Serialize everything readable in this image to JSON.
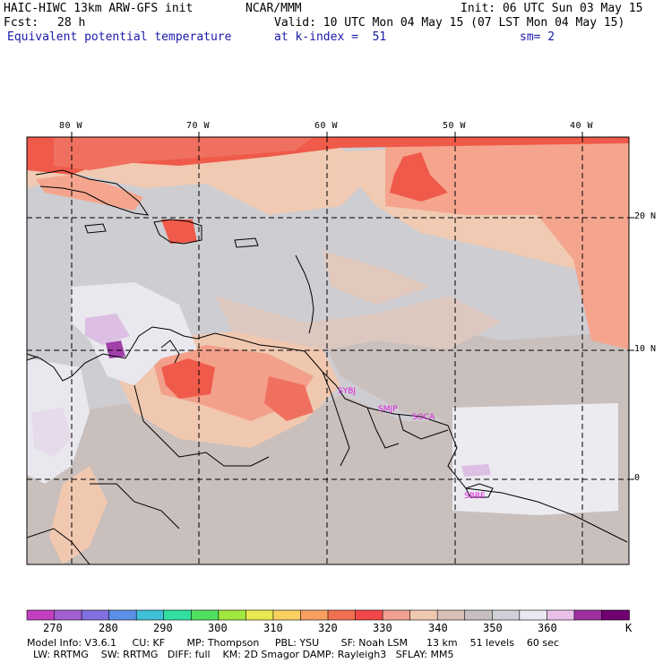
{
  "header": {
    "model": "HAIC-HIWC 13km ARW-GFS init",
    "center": "NCAR/MMM",
    "init": "Init: 06 UTC Sun 03 May 15",
    "fcst_label": "Fcst:",
    "fcst_value": "28 h",
    "valid": "Valid: 10 UTC Mon 04 May 15 (07 LST Mon 04 May 15)",
    "field": "Equivalent potential temperature",
    "level": "at k-index =  51",
    "smoothing": "sm= 2"
  },
  "axes": {
    "lon_labels": [
      "80 W",
      "70 W",
      "60 W",
      "50 W",
      "40 W"
    ],
    "lat_labels": [
      "20 N",
      "10 N",
      "0"
    ]
  },
  "stations": [
    "SYBJ",
    "SMJP",
    "SOCA",
    "SBBE"
  ],
  "colorbar": {
    "unit": "K",
    "tick_labels": [
      "270",
      "280",
      "290",
      "300",
      "310",
      "320",
      "330",
      "340",
      "350",
      "360"
    ],
    "colors": [
      "#c040c0",
      "#a060d0",
      "#8070e0",
      "#5a90e8",
      "#40c0d8",
      "#30e0a0",
      "#50e060",
      "#a0e840",
      "#e8e850",
      "#f8d060",
      "#f8a060",
      "#f07050",
      "#f04848",
      "#f0a090",
      "#f0c8b0",
      "#d8c0b8",
      "#c8c0c0",
      "#d0d0d8",
      "#e8e8f0",
      "#e8c0e8",
      "#a030a0",
      "#700070"
    ]
  },
  "model_info": {
    "line1": "Model Info: V3.6.1     CU: KF       MP: Thompson     PBL: YSU       SF: Noah LSM      13 km    51 levels    60 sec",
    "line2": "  LW: RRTMG    SW: RRTMG   DIFF: full    KM: 2D Smagor DAMP: Rayleigh3   SFLAY: MM5"
  }
}
